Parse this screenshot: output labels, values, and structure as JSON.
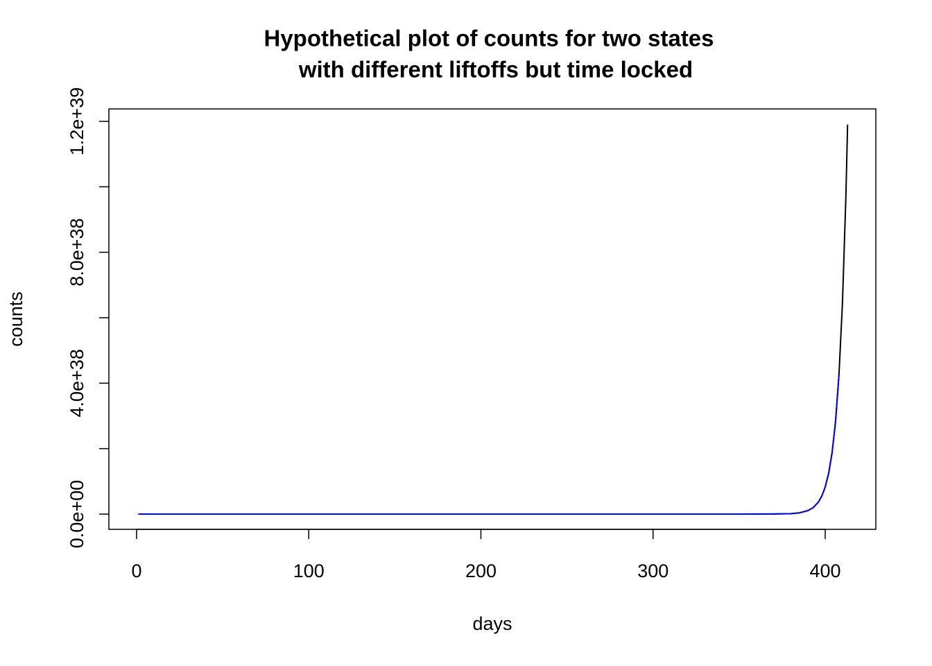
{
  "chart_data": {
    "type": "line",
    "title": [
      "Hypothetical plot of counts for two states",
      "with different liftoffs but time locked"
    ],
    "x_label": "days",
    "y_label": "counts",
    "x": [
      1,
      100,
      200,
      300,
      350,
      370,
      380,
      385,
      390,
      393,
      396,
      398,
      400,
      402,
      404,
      406,
      408,
      410,
      412,
      413
    ],
    "series": [
      {
        "color": "#000000",
        "values": [
          0,
          0,
          0,
          0,
          2.9e+33,
          1.77e+35,
          1.37e+36,
          3.83e+36,
          1.07e+37,
          1.97e+37,
          3.65e+37,
          5.5e+37,
          8.28e+37,
          1.25e+38,
          1.88e+38,
          2.83e+38,
          4.27e+38,
          6.43e+38,
          9.69e+38,
          1.19e+39
        ]
      },
      {
        "color": "#0000ff",
        "values": [
          0,
          0,
          0,
          0,
          2.9e+33,
          1.77e+35,
          1.37e+36,
          3.83e+36,
          1.07e+37,
          1.97e+37,
          3.65e+37,
          5.5e+37,
          8.28e+37,
          1.25e+38,
          1.88e+38,
          2.83e+38,
          4.27e+38,
          null,
          null,
          null
        ]
      }
    ],
    "xlim": [
      -16.1,
      429.4
    ],
    "ylim": [
      -4.66e+37,
      1.238e+39
    ],
    "xticks": [
      0,
      100,
      200,
      300,
      400
    ],
    "yticks": [
      {
        "value": 0,
        "label": "0.0e+00"
      },
      {
        "value": 2e+38,
        "label": null
      },
      {
        "value": 4e+38,
        "label": "4.0e+38"
      },
      {
        "value": 6e+38,
        "label": null
      },
      {
        "value": 8e+38,
        "label": "8.0e+38"
      },
      {
        "value": 1e+39,
        "label": null
      },
      {
        "value": 1.2e+39,
        "label": "1.2e+39"
      }
    ],
    "grid": false
  }
}
